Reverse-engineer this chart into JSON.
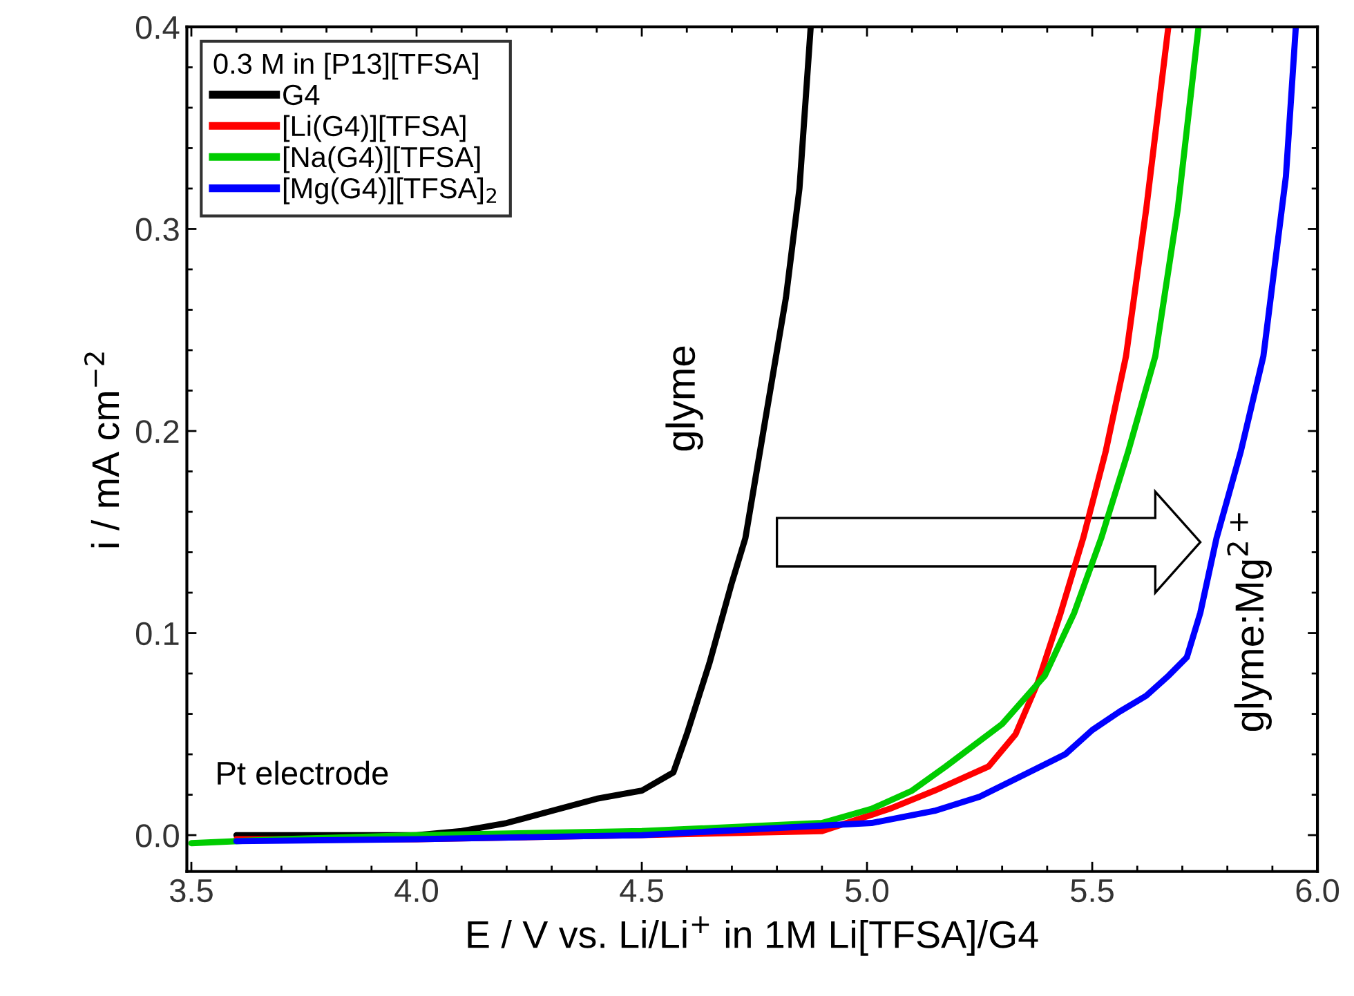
{
  "chart_data": {
    "type": "line",
    "xlabel": "E / V vs. Li/Li$^{+}$ in 1M Li[TFSA]/G4",
    "ylabel": "i / mA cm$^{−2}$",
    "legend_title": "0.3 M in [P13][TFSA]",
    "legend": "top left",
    "grid": false,
    "marker": "none",
    "line_style": "solid",
    "xlim": [
      3.49,
      6.0
    ],
    "ylim": [
      -0.018,
      0.4
    ],
    "xticks": [
      {
        "value": 3.5,
        "label": "3.5"
      },
      {
        "value": 4.0,
        "label": "4.0"
      },
      {
        "value": 4.5,
        "label": "4.5"
      },
      {
        "value": 5.0,
        "label": "5.0"
      },
      {
        "value": 5.5,
        "label": "5.5"
      },
      {
        "value": 6.0,
        "label": "6.0"
      },
      {
        "value": 3.6,
        "label": null
      },
      {
        "value": 3.7,
        "label": null
      },
      {
        "value": 3.8,
        "label": null
      },
      {
        "value": 3.9,
        "label": null
      },
      {
        "value": 4.1,
        "label": null
      },
      {
        "value": 4.2,
        "label": null
      },
      {
        "value": 4.3,
        "label": null
      },
      {
        "value": 4.4,
        "label": null
      },
      {
        "value": 4.6,
        "label": null
      },
      {
        "value": 4.7,
        "label": null
      },
      {
        "value": 4.8,
        "label": null
      },
      {
        "value": 4.9,
        "label": null
      },
      {
        "value": 5.1,
        "label": null
      },
      {
        "value": 5.2,
        "label": null
      },
      {
        "value": 5.3,
        "label": null
      },
      {
        "value": 5.4,
        "label": null
      },
      {
        "value": 5.6,
        "label": null
      },
      {
        "value": 5.7,
        "label": null
      },
      {
        "value": 5.8,
        "label": null
      },
      {
        "value": 5.9,
        "label": null
      }
    ],
    "yticks": [
      {
        "value": 0.0,
        "label": "0.0"
      },
      {
        "value": 0.1,
        "label": "0.1"
      },
      {
        "value": 0.2,
        "label": "0.2"
      },
      {
        "value": 0.3,
        "label": "0.3"
      },
      {
        "value": 0.4,
        "label": "0.4"
      },
      {
        "value": 0.02,
        "label": null
      },
      {
        "value": 0.04,
        "label": null
      },
      {
        "value": 0.06,
        "label": null
      },
      {
        "value": 0.08,
        "label": null
      },
      {
        "value": 0.12,
        "label": null
      },
      {
        "value": 0.14,
        "label": null
      },
      {
        "value": 0.16,
        "label": null
      },
      {
        "value": 0.18,
        "label": null
      },
      {
        "value": 0.22,
        "label": null
      },
      {
        "value": 0.24,
        "label": null
      },
      {
        "value": 0.26,
        "label": null
      },
      {
        "value": 0.28,
        "label": null
      },
      {
        "value": 0.32,
        "label": null
      },
      {
        "value": 0.34,
        "label": null
      },
      {
        "value": 0.36,
        "label": null
      },
      {
        "value": 0.38,
        "label": null
      }
    ],
    "series": [
      {
        "name": "G4",
        "color": "#000000",
        "x": [
          3.6,
          4.0,
          4.1,
          4.2,
          4.3,
          4.4,
          4.5,
          4.57,
          4.6,
          4.65,
          4.7,
          4.73,
          4.77,
          4.82,
          4.85,
          4.875
        ],
        "values": [
          0.0,
          0.0,
          0.002,
          0.006,
          0.012,
          0.018,
          0.022,
          0.031,
          0.05,
          0.085,
          0.125,
          0.147,
          0.2,
          0.266,
          0.32,
          0.4
        ]
      },
      {
        "name": "[Li(G4)][TFSA]",
        "color": "#ff0000",
        "x": [
          3.6,
          4.0,
          4.5,
          4.9,
          5.05,
          5.15,
          5.27,
          5.33,
          5.38,
          5.43,
          5.48,
          5.53,
          5.575,
          5.62,
          5.669
        ],
        "values": [
          -0.002,
          -0.002,
          0.0,
          0.002,
          0.013,
          0.022,
          0.034,
          0.05,
          0.076,
          0.11,
          0.147,
          0.19,
          0.237,
          0.31,
          0.4
        ]
      },
      {
        "name": "[Na(G4)][TFSA]",
        "color": "#00cc00",
        "x": [
          3.5,
          3.7,
          4.0,
          4.5,
          4.9,
          5.01,
          5.1,
          5.175,
          5.3,
          5.395,
          5.46,
          5.52,
          5.58,
          5.64,
          5.69,
          5.736
        ],
        "values": [
          -0.004,
          -0.002,
          0.0,
          0.002,
          0.006,
          0.013,
          0.022,
          0.034,
          0.055,
          0.079,
          0.11,
          0.147,
          0.19,
          0.237,
          0.31,
          0.4
        ]
      },
      {
        "name": "[Mg(G4)][TFSA]$_{2}$",
        "color": "#0000ff",
        "x": [
          3.6,
          4.0,
          4.5,
          5.01,
          5.15,
          5.25,
          5.35,
          5.44,
          5.5,
          5.56,
          5.62,
          5.67,
          5.71,
          5.74,
          5.776,
          5.83,
          5.88,
          5.93,
          5.952
        ],
        "values": [
          -0.003,
          -0.002,
          0.0,
          0.006,
          0.012,
          0.019,
          0.03,
          0.04,
          0.052,
          0.061,
          0.069,
          0.079,
          0.088,
          0.11,
          0.147,
          0.19,
          0.237,
          0.326,
          0.4
        ]
      }
    ],
    "annotations": [
      "glyme",
      "glyme:Mg$^{2+}$",
      "Pt electrode"
    ]
  }
}
